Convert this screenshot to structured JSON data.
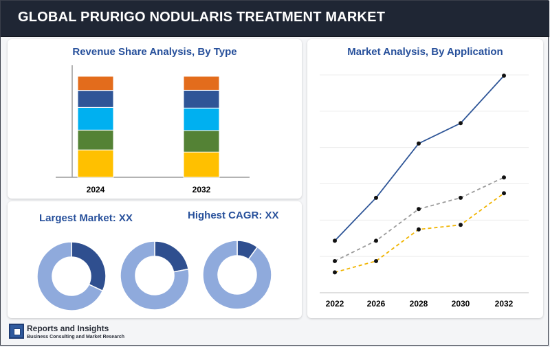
{
  "header": {
    "title": "GLOBAL PRURIGO NODULARIS TREATMENT MARKET"
  },
  "left_panel": {
    "bar_title": "Revenue Share Analysis, By Type",
    "largest_market": "Largest Market: XX",
    "highest_cagr": "Highest CAGR: XX"
  },
  "right_panel": {
    "line_title": "Market Analysis, By Application"
  },
  "brand": {
    "name": "Reports and Insights",
    "tagline": "Business Consulting and Market Research"
  },
  "colors": {
    "seg1": "#ffc000",
    "seg2": "#548235",
    "seg3": "#00b0f0",
    "seg4": "#2f5597",
    "seg5": "#e36c1c",
    "donut_light": "#8faadc",
    "donut_dark": "#2f4f8f",
    "line_blue": "#2e5597",
    "line_gray": "#9a9a9a",
    "line_yellow": "#f0b400"
  },
  "chart_data": [
    {
      "type": "bar",
      "stacked": true,
      "title": "Revenue Share Analysis, By Type",
      "categories": [
        "2024",
        "2032"
      ],
      "series": [
        {
          "values": [
            29,
            27
          ]
        },
        {
          "values": [
            21,
            23
          ]
        },
        {
          "values": [
            24,
            24
          ]
        },
        {
          "values": [
            18,
            19
          ]
        },
        {
          "values": [
            15,
            15
          ]
        }
      ]
    },
    {
      "type": "pie",
      "donut": true,
      "values": [
        32,
        68
      ]
    },
    {
      "type": "pie",
      "donut": true,
      "values": [
        22,
        78
      ]
    },
    {
      "type": "pie",
      "donut": true,
      "values": [
        10,
        90
      ]
    },
    {
      "type": "line",
      "title": "Market Analysis, By Application",
      "x": [
        "2022",
        "2026",
        "2028",
        "2030",
        "2032"
      ],
      "ylim": [
        0,
        100
      ],
      "grid": true,
      "series": [
        {
          "style": "solid",
          "values": [
            23,
            42,
            66,
            75,
            96
          ]
        },
        {
          "style": "dashed",
          "values": [
            14,
            23,
            37,
            42,
            51
          ]
        },
        {
          "style": "dashed",
          "values": [
            9,
            14,
            28,
            30,
            44
          ]
        }
      ]
    }
  ]
}
